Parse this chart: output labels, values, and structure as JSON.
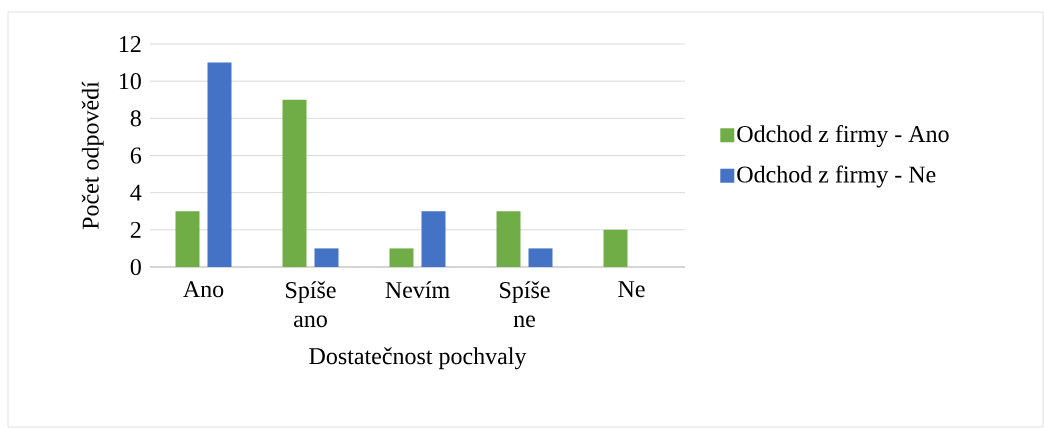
{
  "chart_data": {
    "type": "bar",
    "xlabel": "Dostatečnost pochvaly",
    "ylabel": "Počet odpovědí",
    "categories": [
      "Ano",
      "Spíše ano",
      "Nevím",
      "Spíše ne",
      "Ne"
    ],
    "series": [
      {
        "name": "Odchod z firmy - Ano",
        "color": "#70ad47",
        "values": [
          3,
          9,
          1,
          3,
          2
        ]
      },
      {
        "name": "Odchod z firmy - Ne",
        "color": "#4472c4",
        "values": [
          11,
          1,
          3,
          1,
          null
        ]
      }
    ],
    "ylim": [
      0,
      12
    ],
    "yticks": [
      0,
      2,
      4,
      6,
      8,
      10,
      12
    ],
    "grid": "y",
    "legend": "right"
  }
}
